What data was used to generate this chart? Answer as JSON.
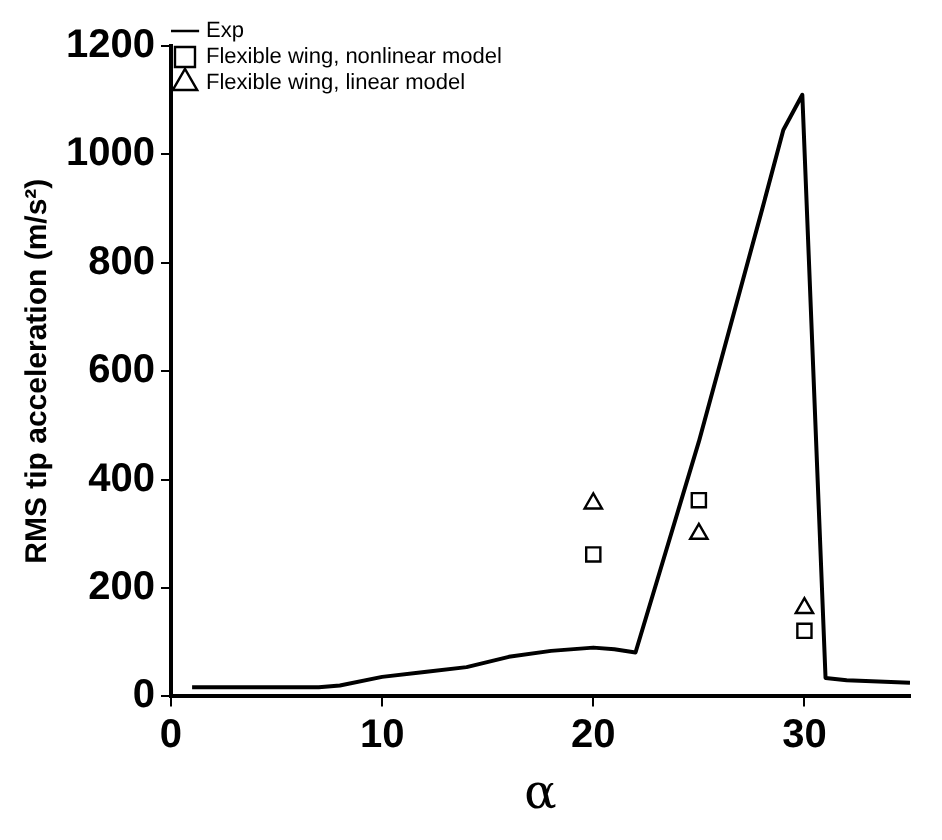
{
  "chart_data": {
    "type": "line",
    "xlabel": "α",
    "ylabel": "RMS tip acceleration (m/s²)",
    "xlim": [
      0,
      35
    ],
    "ylim": [
      0,
      1200
    ],
    "xticks": [
      0,
      10,
      20,
      30
    ],
    "yticks": [
      0,
      200,
      400,
      600,
      800,
      1000,
      1200
    ],
    "grid": false,
    "legend": "top left",
    "series": [
      {
        "name": "Exp",
        "type": "line",
        "color": "#000000",
        "marker": "none",
        "x": [
          1,
          4,
          7,
          8,
          10,
          12,
          14,
          16,
          18,
          20,
          21,
          22,
          25,
          28,
          29,
          29.9,
          31,
          32,
          35
        ],
        "values": [
          17,
          17,
          17,
          20,
          36,
          45,
          54,
          73,
          84,
          90,
          87,
          81,
          470,
          899,
          1045,
          1110,
          34,
          30,
          25
        ]
      },
      {
        "name": "Flexible wing, nonlinear model",
        "type": "scatter",
        "color": "#000000",
        "marker": "square",
        "x": [
          20,
          25,
          30
        ],
        "values": [
          262,
          362,
          121
        ]
      },
      {
        "name": "Flexible wing, linear model",
        "type": "scatter",
        "color": "#000000",
        "marker": "triangle",
        "x": [
          20,
          25,
          30
        ],
        "values": [
          356,
          300,
          163
        ]
      }
    ]
  }
}
